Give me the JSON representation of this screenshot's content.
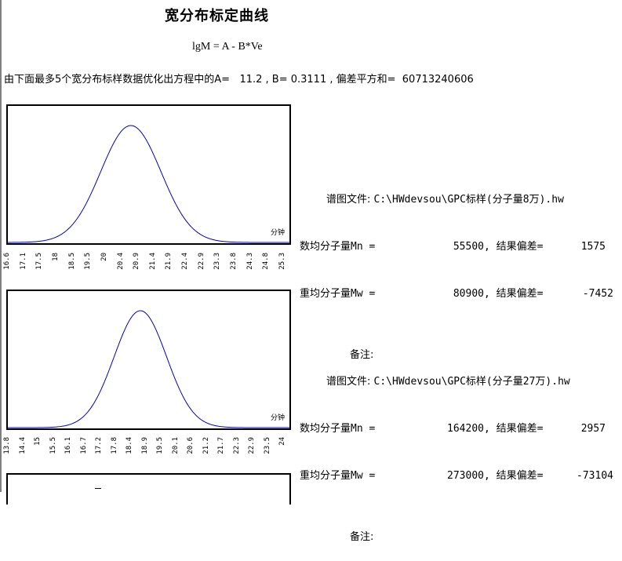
{
  "title": "宽分布标定曲线",
  "formula": "lgM = A - B*Ve",
  "description": "由下面最多5个宽分布标样数据优化出方程中的A=   11.2 , B= 0.3111 , 偏差平方和=  60713240606",
  "samples": [
    {
      "file_label": "谱图文件:",
      "file_path": "C:\\HWdevsou\\GPC标样(分子量8万).hw",
      "mn_label": "数均分子量Mn =",
      "mn_value": "55500",
      "mn_dev_label": ", 结果偏差=",
      "mn_dev": "1575",
      "mw_label": "重均分子量Mw =",
      "mw_value": "80900",
      "mw_dev_label": ", 结果偏差=",
      "mw_dev": "-7452",
      "remark_label": "备注:",
      "chart_unit": "分钟",
      "x_ticks": [
        "16.6",
        "17.1",
        "17.5",
        "18",
        "18.5",
        "19.5",
        "20",
        "20.4",
        "20.9",
        "21.4",
        "21.9",
        "22.4",
        "22.9",
        "23.3",
        "23.8",
        "24.3",
        "24.8",
        "25.3"
      ]
    },
    {
      "file_label": "谱图文件:",
      "file_path": "C:\\HWdevsou\\GPC标样(分子量27万).hw",
      "mn_label": "数均分子量Mn =",
      "mn_value": "164200",
      "mn_dev_label": ", 结果偏差=",
      "mn_dev": "2957",
      "mw_label": "重均分子量Mw =",
      "mw_value": "273000",
      "mw_dev_label": ", 结果偏差=",
      "mw_dev": "-73104",
      "remark_label": "备注:",
      "chart_unit": "分钟",
      "x_ticks": [
        "13.8",
        "14.4",
        "15",
        "15.5",
        "16.1",
        "16.7",
        "17.2",
        "17.8",
        "18.4",
        "18.9",
        "19.5",
        "20.1",
        "20.6",
        "21.2",
        "21.7",
        "22.3",
        "22.9",
        "23.5",
        "24"
      ]
    }
  ],
  "chart_data": [
    {
      "type": "line",
      "x_start": 16.6,
      "x_end": 25.3,
      "peak_x": 20.4,
      "sigma": 0.93,
      "line_color": "#0000cc",
      "grid": false,
      "unit": "分钟"
    },
    {
      "type": "line",
      "x_start": 13.8,
      "x_end": 24.0,
      "peak_x": 18.6,
      "sigma": 0.95,
      "line_color": "#0000cc",
      "grid": false,
      "unit": "分钟"
    }
  ]
}
